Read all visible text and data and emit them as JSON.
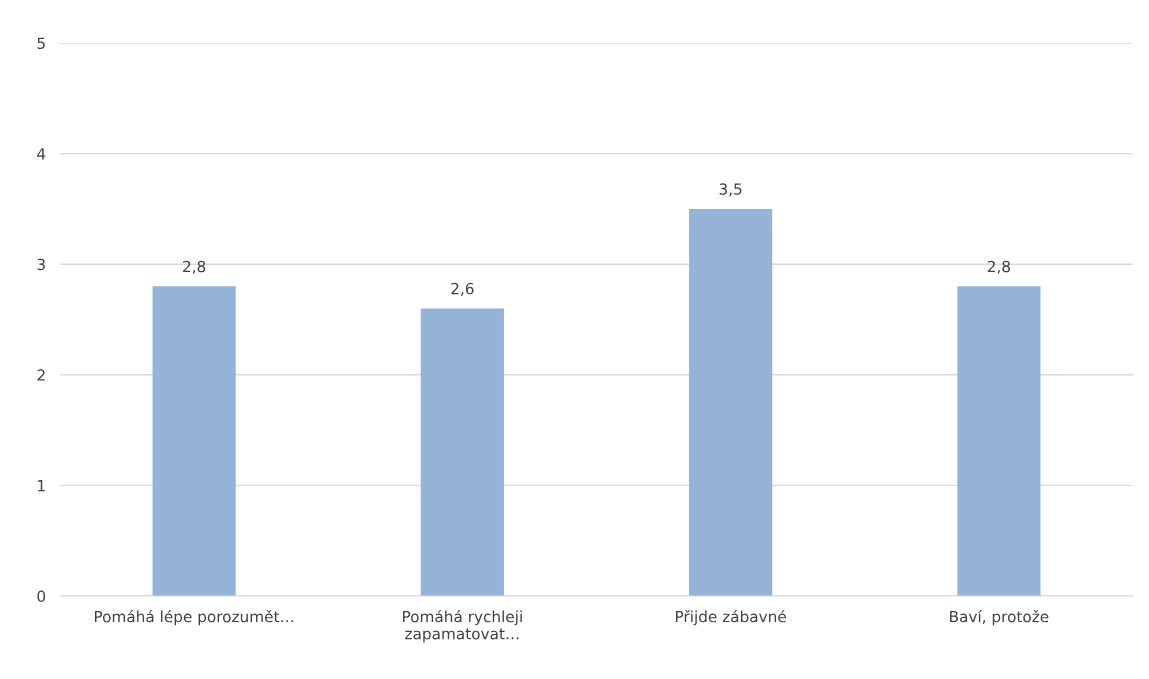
{
  "chart_data": {
    "type": "bar",
    "categories": [
      "Pomáhá lépe porozumět…",
      "Pomáhá rychleji\nzapamatovat…",
      "Přijde zábavné",
      "Baví, protože"
    ],
    "values": [
      2.8,
      2.6,
      3.5,
      2.8
    ],
    "value_labels": [
      "2,8",
      "2,6",
      "3,5",
      "2,8"
    ],
    "color": "#95b3d7",
    "ylim": [
      0,
      5
    ],
    "yticks": [
      0,
      1,
      2,
      3,
      4,
      5
    ],
    "grid": "y",
    "legend": false
  }
}
